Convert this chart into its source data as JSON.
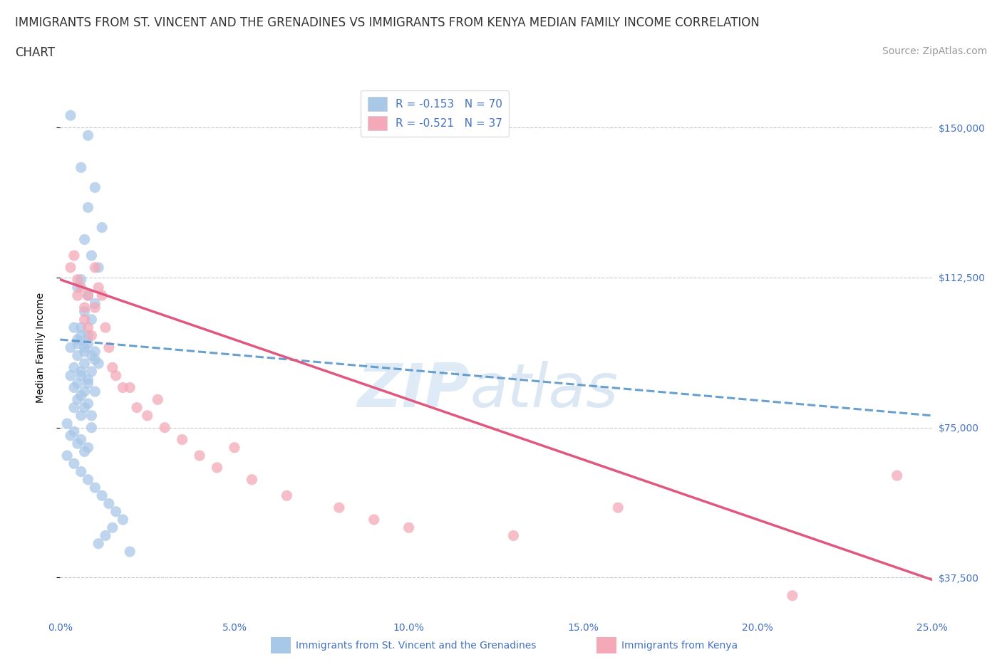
{
  "title_line1": "IMMIGRANTS FROM ST. VINCENT AND THE GRENADINES VS IMMIGRANTS FROM KENYA MEDIAN FAMILY INCOME CORRELATION",
  "title_line2": "CHART",
  "source_text": "Source: ZipAtlas.com",
  "ylabel": "Median Family Income",
  "xlim": [
    0,
    0.25
  ],
  "ylim": [
    28000,
    162000
  ],
  "yticks": [
    37500,
    75000,
    112500,
    150000
  ],
  "ytick_labels": [
    "$37,500",
    "$75,000",
    "$112,500",
    "$150,000"
  ],
  "xticks": [
    0.0,
    0.05,
    0.1,
    0.15,
    0.2,
    0.25
  ],
  "xtick_labels": [
    "0.0%",
    "5.0%",
    "10.0%",
    "15.0%",
    "20.0%",
    "25.0%"
  ],
  "legend_entry1": "R = -0.153   N = 70",
  "legend_entry2": "R = -0.521   N = 37",
  "legend_label1": "Immigrants from St. Vincent and the Grenadines",
  "legend_label2": "Immigrants from Kenya",
  "color_blue": "#a8c8e8",
  "color_pink": "#f4a8b8",
  "color_blue_line": "#5090c8",
  "color_pink_line": "#e05880",
  "watermark_zip": "ZIP",
  "watermark_atlas": "atlas",
  "axis_color": "#4472c4",
  "grid_color": "#b8b8c8",
  "title_fontsize": 12,
  "label_fontsize": 10,
  "tick_fontsize": 10,
  "legend_fontsize": 11,
  "source_fontsize": 10,
  "blue_scatter_x": [
    0.003,
    0.008,
    0.006,
    0.01,
    0.008,
    0.012,
    0.007,
    0.009,
    0.011,
    0.006,
    0.005,
    0.008,
    0.01,
    0.007,
    0.009,
    0.006,
    0.008,
    0.005,
    0.007,
    0.01,
    0.004,
    0.006,
    0.008,
    0.01,
    0.005,
    0.007,
    0.009,
    0.011,
    0.006,
    0.008,
    0.003,
    0.005,
    0.007,
    0.009,
    0.004,
    0.006,
    0.008,
    0.01,
    0.005,
    0.007,
    0.009,
    0.004,
    0.006,
    0.008,
    0.003,
    0.005,
    0.007,
    0.009,
    0.004,
    0.006,
    0.002,
    0.004,
    0.006,
    0.008,
    0.003,
    0.005,
    0.007,
    0.002,
    0.004,
    0.006,
    0.008,
    0.01,
    0.012,
    0.014,
    0.016,
    0.018,
    0.015,
    0.013,
    0.011,
    0.02
  ],
  "blue_scatter_y": [
    153000,
    148000,
    140000,
    135000,
    130000,
    125000,
    122000,
    118000,
    115000,
    112000,
    110000,
    108000,
    106000,
    104000,
    102000,
    100000,
    98000,
    96000,
    94000,
    92000,
    100000,
    98000,
    96000,
    94000,
    97000,
    95000,
    93000,
    91000,
    89000,
    87000,
    95000,
    93000,
    91000,
    89000,
    90000,
    88000,
    86000,
    84000,
    82000,
    80000,
    78000,
    85000,
    83000,
    81000,
    88000,
    86000,
    84000,
    75000,
    80000,
    78000,
    76000,
    74000,
    72000,
    70000,
    73000,
    71000,
    69000,
    68000,
    66000,
    64000,
    62000,
    60000,
    58000,
    56000,
    54000,
    52000,
    50000,
    48000,
    46000,
    44000
  ],
  "pink_scatter_x": [
    0.003,
    0.004,
    0.005,
    0.006,
    0.005,
    0.007,
    0.008,
    0.007,
    0.008,
    0.009,
    0.01,
    0.011,
    0.01,
    0.012,
    0.013,
    0.014,
    0.015,
    0.016,
    0.018,
    0.02,
    0.022,
    0.025,
    0.028,
    0.03,
    0.035,
    0.04,
    0.045,
    0.05,
    0.055,
    0.065,
    0.08,
    0.09,
    0.1,
    0.13,
    0.16,
    0.21,
    0.24
  ],
  "pink_scatter_y": [
    115000,
    118000,
    112000,
    110000,
    108000,
    105000,
    108000,
    102000,
    100000,
    98000,
    115000,
    110000,
    105000,
    108000,
    100000,
    95000,
    90000,
    88000,
    85000,
    85000,
    80000,
    78000,
    82000,
    75000,
    72000,
    68000,
    65000,
    70000,
    62000,
    58000,
    55000,
    52000,
    50000,
    48000,
    55000,
    33000,
    63000
  ],
  "blue_line_x": [
    0.0,
    0.25
  ],
  "blue_line_y": [
    97000,
    78000
  ],
  "pink_line_x": [
    0.0,
    0.25
  ],
  "pink_line_y": [
    112000,
    37000
  ]
}
